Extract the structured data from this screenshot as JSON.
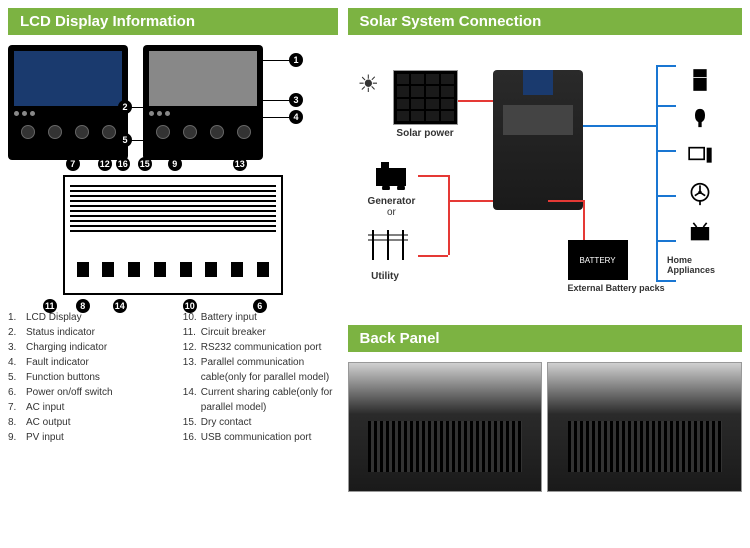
{
  "headers": {
    "lcd": "LCD Display Information",
    "solar": "Solar System Connection",
    "back": "Back Panel"
  },
  "callouts_right_panel": [
    "1",
    "3",
    "4",
    "2",
    "5"
  ],
  "callouts_bottom": [
    "7",
    "12",
    "16",
    "15",
    "9",
    "13",
    "11",
    "8",
    "14",
    "10",
    "6"
  ],
  "legend": [
    {
      "num": "1.",
      "text": "LCD Display"
    },
    {
      "num": "2.",
      "text": "Status indicator"
    },
    {
      "num": "3.",
      "text": "Charging indicator"
    },
    {
      "num": "4.",
      "text": "Fault indicator"
    },
    {
      "num": "5.",
      "text": "Function buttons"
    },
    {
      "num": "6.",
      "text": "Power on/off switch"
    },
    {
      "num": "7.",
      "text": "AC input"
    },
    {
      "num": "8.",
      "text": "AC output"
    },
    {
      "num": "9.",
      "text": "PV input"
    },
    {
      "num": "10.",
      "text": "Battery input"
    },
    {
      "num": "11.",
      "text": "Circuit breaker"
    },
    {
      "num": "12.",
      "text": "RS232 communication port"
    },
    {
      "num": "13.",
      "text": "Parallel communication cable(only for parallel model)"
    },
    {
      "num": "14.",
      "text": "Current sharing cable(only for parallel model)"
    },
    {
      "num": "15.",
      "text": "Dry contact"
    },
    {
      "num": "16.",
      "text": "USB communication port"
    }
  ],
  "solar": {
    "solar_power": "Solar power",
    "generator": "Generator",
    "or": "or",
    "utility": "Utility",
    "battery": "BATTERY",
    "external_battery": "External Battery packs",
    "appliances": "Home Appliances"
  },
  "colors": {
    "header_bg": "#7cb342",
    "lcd_screen": "#1a3a6e",
    "wire_red": "#e53935",
    "wire_blue": "#1976d2"
  }
}
